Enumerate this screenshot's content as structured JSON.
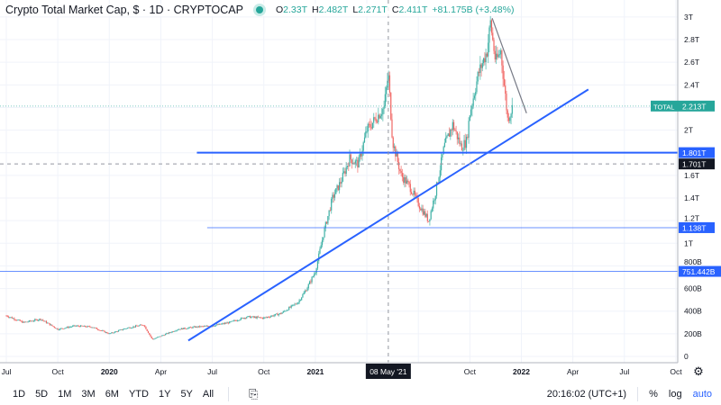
{
  "header": {
    "title": "Crypto Total Market Cap, $ · 1D · CRYPTOCAP",
    "open": "2.33T",
    "high": "2.482T",
    "low": "2.271T",
    "close": "2.411T",
    "change": "+81.175B (+3.48%)",
    "o": "O",
    "h": "H",
    "l": "L",
    "c": "C"
  },
  "colors": {
    "up": "#26a69a",
    "down": "#ef5350",
    "line": "#2962ff",
    "total": "#26a69a"
  },
  "chart_data": {
    "type": "candlestick",
    "title": "Crypto Total Market Cap",
    "y_unit": "T",
    "ylim": [
      0,
      3.1
    ],
    "y_ticks": [
      {
        "v": 0,
        "l": "0"
      },
      {
        "v": 0.2,
        "l": "200B"
      },
      {
        "v": 0.4,
        "l": "400B"
      },
      {
        "v": 0.6,
        "l": "600B"
      },
      {
        "v": 0.8,
        "l": "800B"
      },
      {
        "v": 1.0,
        "l": "1T"
      },
      {
        "v": 1.2,
        "l": "1.2T"
      },
      {
        "v": 1.4,
        "l": "1.4T"
      },
      {
        "v": 1.6,
        "l": "1.6T"
      },
      {
        "v": 2.0,
        "l": "2T"
      },
      {
        "v": 2.4,
        "l": "2.4T"
      },
      {
        "v": 2.6,
        "l": "2.6T"
      },
      {
        "v": 2.8,
        "l": "2.8T"
      },
      {
        "v": 3.0,
        "l": "3T"
      }
    ],
    "x_ticks": [
      {
        "m": 0,
        "l": "Jul"
      },
      {
        "m": 3,
        "l": "Oct"
      },
      {
        "m": 6,
        "l": "2020",
        "bold": true
      },
      {
        "m": 9,
        "l": "Apr"
      },
      {
        "m": 12,
        "l": "Jul"
      },
      {
        "m": 15,
        "l": "Oct"
      },
      {
        "m": 18,
        "l": "2021",
        "bold": true
      },
      {
        "m": 21,
        "l": "Apr"
      },
      {
        "m": 24,
        "l": "Jul"
      },
      {
        "m": 27,
        "l": "Oct"
      },
      {
        "m": 30,
        "l": "2022",
        "bold": true
      },
      {
        "m": 33,
        "l": "Apr"
      },
      {
        "m": 36,
        "l": "Jul"
      },
      {
        "m": 39,
        "l": "Oct"
      }
    ],
    "x_note": "m = months since Jul 2019",
    "path": [
      [
        0,
        0.36
      ],
      [
        1,
        0.3
      ],
      [
        2,
        0.33
      ],
      [
        3,
        0.24
      ],
      [
        4,
        0.27
      ],
      [
        5,
        0.26
      ],
      [
        6,
        0.2
      ],
      [
        7,
        0.25
      ],
      [
        8,
        0.28
      ],
      [
        8.5,
        0.15
      ],
      [
        9,
        0.18
      ],
      [
        10,
        0.24
      ],
      [
        11,
        0.26
      ],
      [
        12,
        0.27
      ],
      [
        13,
        0.3
      ],
      [
        14,
        0.35
      ],
      [
        15,
        0.34
      ],
      [
        16,
        0.38
      ],
      [
        17,
        0.48
      ],
      [
        17.5,
        0.6
      ],
      [
        18,
        0.75
      ],
      [
        18.5,
        1.1
      ],
      [
        19,
        1.4
      ],
      [
        19.5,
        1.55
      ],
      [
        20,
        1.75
      ],
      [
        20.5,
        1.7
      ],
      [
        21,
        2.0
      ],
      [
        21.5,
        2.1
      ],
      [
        22,
        2.2
      ],
      [
        22.25,
        2.5
      ],
      [
        22.5,
        1.9
      ],
      [
        23,
        1.6
      ],
      [
        23.5,
        1.5
      ],
      [
        24,
        1.35
      ],
      [
        24.6,
        1.2
      ],
      [
        25,
        1.45
      ],
      [
        25.5,
        1.85
      ],
      [
        26,
        2.05
      ],
      [
        26.5,
        1.85
      ],
      [
        26.8,
        1.9
      ],
      [
        27,
        2.15
      ],
      [
        27.5,
        2.5
      ],
      [
        28,
        2.7
      ],
      [
        28.2,
        2.95
      ],
      [
        28.5,
        2.6
      ],
      [
        28.8,
        2.7
      ],
      [
        29,
        2.4
      ],
      [
        29.2,
        2.1
      ],
      [
        29.5,
        2.21
      ]
    ],
    "price_labels": [
      {
        "v": 2.213,
        "l": "2.213T",
        "name": "TOTAL",
        "kind": "total"
      },
      {
        "v": 1.801,
        "l": "1.801T",
        "kind": "line"
      },
      {
        "v": 1.701,
        "l": "1.701T",
        "kind": "crosshair"
      },
      {
        "v": 1.138,
        "l": "1.138T",
        "kind": "line"
      },
      {
        "v": 0.7514,
        "l": "751.442B",
        "kind": "line"
      }
    ],
    "horizontal_lines": [
      {
        "v": 1.801,
        "from_m": 11.1
      },
      {
        "v": 1.138,
        "from_m": 11.7
      },
      {
        "v": 0.7514,
        "from_m": -1
      }
    ],
    "trendlines": [
      {
        "from": [
          10.6,
          0.14
        ],
        "to": [
          33.9,
          2.36
        ],
        "color": "#2962ff"
      },
      {
        "from": [
          28.3,
          2.99
        ],
        "to": [
          30.3,
          2.15
        ],
        "color": "#787b86"
      }
    ],
    "crosshair": {
      "m": 22.25,
      "v": 1.701,
      "date_label": "08 May '21"
    }
  },
  "bottom": {
    "timeframes": [
      "1D",
      "5D",
      "1M",
      "3M",
      "6M",
      "YTD",
      "1Y",
      "5Y",
      "All"
    ],
    "time": "20:16:02 (UTC+1)",
    "percent": "%",
    "log": "log",
    "auto": "auto"
  }
}
